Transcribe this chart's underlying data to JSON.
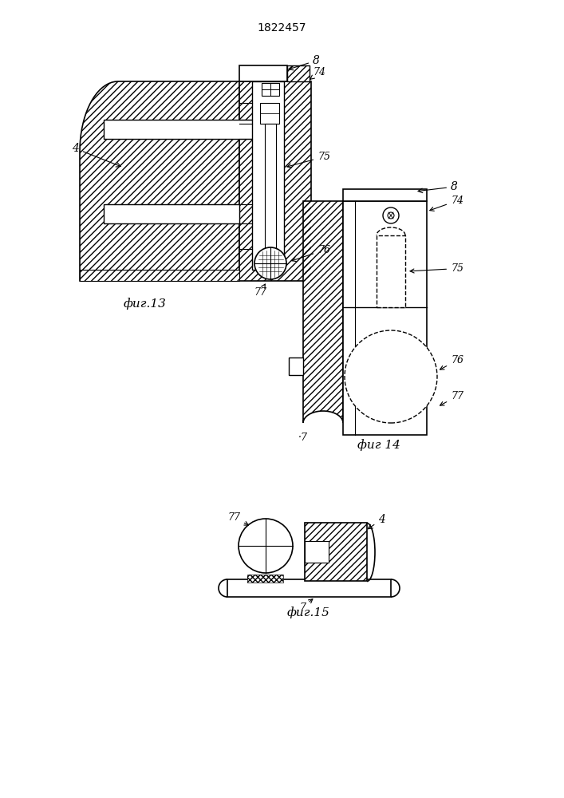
{
  "title": "1822457",
  "fig_width": 7.07,
  "fig_height": 10.0,
  "bg_color": "#ffffff",
  "fig13_label": "фиг.13",
  "fig14_label": "фиг 14",
  "fig15_label": "фиг.15"
}
